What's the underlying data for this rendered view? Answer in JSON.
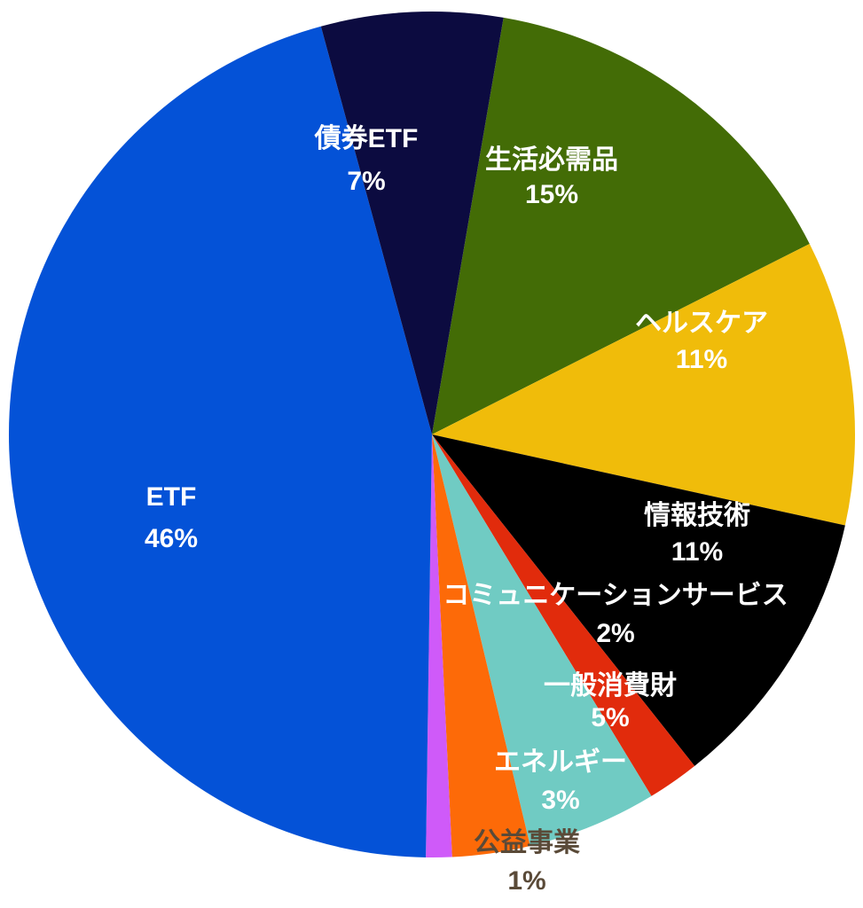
{
  "chart_data": {
    "type": "pie",
    "slices": [
      {
        "name": "生活必需品",
        "value": 15,
        "pct_label": "15%",
        "color": "#436c06",
        "text_color": "#ffffff"
      },
      {
        "name": "ヘルスケア",
        "value": 11,
        "pct_label": "11%",
        "color": "#f0bc0a",
        "text_color": "#ffffff"
      },
      {
        "name": "情報技術",
        "value": 11,
        "pct_label": "11%",
        "color": "#000000",
        "text_color": "#ffffff"
      },
      {
        "name": "コミュニケーションサービス",
        "value": 2,
        "pct_label": "2%",
        "color": "#e12b0c",
        "text_color": "#ffffff"
      },
      {
        "name": "一般消費財",
        "value": 5,
        "pct_label": "5%",
        "color": "#70cbc3",
        "text_color": "#ffffff"
      },
      {
        "name": "エネルギー",
        "value": 3,
        "pct_label": "3%",
        "color": "#fd6a08",
        "text_color": "#ffffff"
      },
      {
        "name": "公益事業",
        "value": 1,
        "pct_label": "1%",
        "color": "#cf5af9",
        "text_color": "#5a4a38"
      },
      {
        "name": "ETF",
        "value": 46,
        "pct_label": "46%",
        "color": "#0452d7",
        "text_color": "#ffffff"
      },
      {
        "name": "債券ETF",
        "value": 7,
        "pct_label": "7%",
        "color": "#0c0b40",
        "text_color": "#ffffff"
      }
    ],
    "title": "",
    "legend": "none",
    "start": "12 o'clock",
    "direction": "clockwise"
  }
}
